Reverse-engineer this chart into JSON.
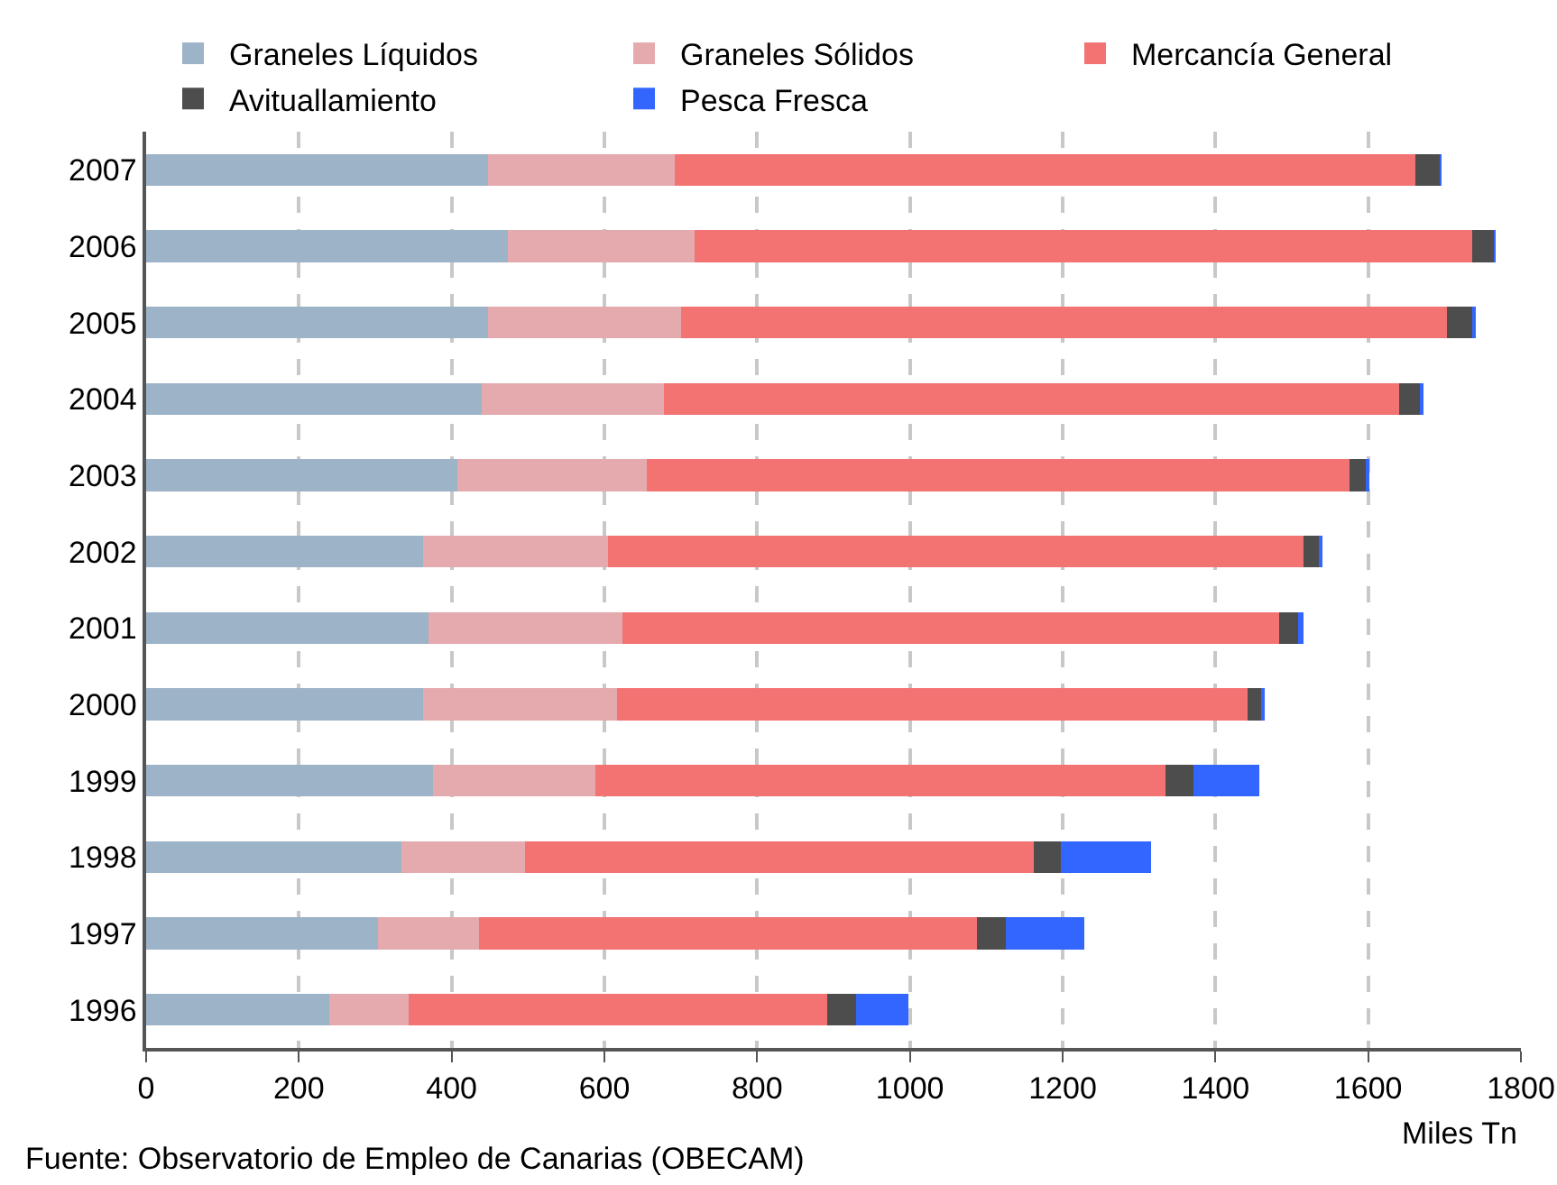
{
  "chart_data": {
    "type": "bar",
    "orientation": "horizontal",
    "stacked": true,
    "categories": [
      "2007",
      "2006",
      "2005",
      "2004",
      "2003",
      "2002",
      "2001",
      "2000",
      "1999",
      "1998",
      "1997",
      "1996"
    ],
    "series": [
      {
        "name": "Graneles Líquidos",
        "color": "#9db3c8",
        "values": [
          448,
          474,
          448,
          439,
          408,
          363,
          370,
          363,
          375,
          334,
          303,
          240
        ]
      },
      {
        "name": "Graneles Sólidos",
        "color": "#e5aaae",
        "values": [
          244,
          244,
          252,
          239,
          247,
          242,
          254,
          254,
          213,
          162,
          133,
          104
        ]
      },
      {
        "name": "Mercancía General",
        "color": "#f27372",
        "values": [
          970,
          1018,
          1003,
          963,
          920,
          910,
          860,
          825,
          747,
          666,
          652,
          548
        ]
      },
      {
        "name": "Avituallamiento",
        "color": "#4d4d4d",
        "values": [
          32,
          29,
          35,
          29,
          24,
          22,
          24,
          20,
          36,
          36,
          38,
          37
        ]
      },
      {
        "name": "Pesca Fresca",
        "color": "#3366ff",
        "values": [
          2,
          1,
          2,
          1,
          1,
          1,
          7,
          1,
          87,
          118,
          102,
          69
        ]
      }
    ],
    "xlabel": "Miles Tn",
    "xlim": [
      0,
      1800
    ],
    "xticks": [
      0,
      200,
      400,
      600,
      800,
      1000,
      1200,
      1400,
      1600,
      1800
    ],
    "grid": "x",
    "legend": "top",
    "annotations": [
      "Fuente: Observatorio de Empleo de Canarias (OBECAM)"
    ]
  }
}
